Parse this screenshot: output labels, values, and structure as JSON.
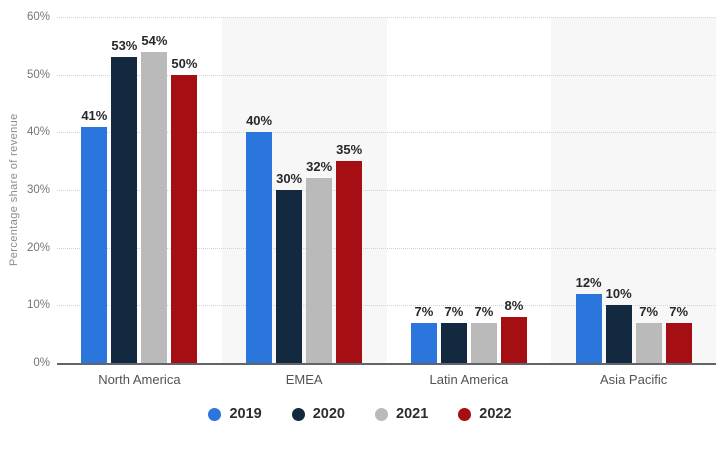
{
  "chart_data": {
    "type": "bar",
    "ylabel": "Percentage share of revenue",
    "categories": [
      "North America",
      "EMEA",
      "Latin America",
      "Asia Pacific"
    ],
    "series": [
      {
        "name": "2019",
        "color": "#2b76dd",
        "values": [
          41,
          40,
          7,
          12
        ]
      },
      {
        "name": "2020",
        "color": "#13293f",
        "values": [
          53,
          30,
          7,
          10
        ]
      },
      {
        "name": "2021",
        "color": "#bababa",
        "values": [
          54,
          32,
          7,
          7
        ]
      },
      {
        "name": "2022",
        "color": "#a50e13",
        "values": [
          50,
          35,
          8,
          7
        ]
      }
    ],
    "value_suffix": "%",
    "ylim": [
      0,
      60
    ],
    "yticks": [
      0,
      10,
      20,
      30,
      40,
      50,
      60
    ],
    "ytick_labels": [
      "0%",
      "10%",
      "20%",
      "30%",
      "40%",
      "50%",
      "60%"
    ],
    "grid": "horizontal-dotted",
    "legend_position": "bottom",
    "band_colors": [
      "#ffffff",
      "#f7f7f7",
      "#ffffff",
      "#f7f7f7"
    ]
  }
}
